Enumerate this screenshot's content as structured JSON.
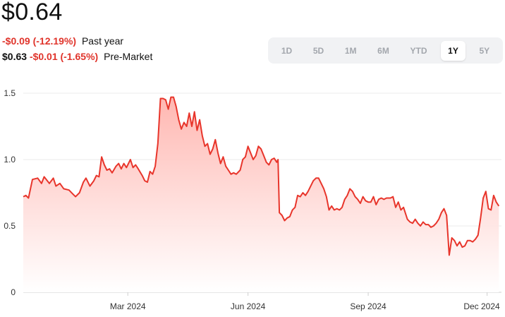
{
  "quote": {
    "price": "$0.64",
    "change_year": "-$0.09 (-12.19%)",
    "change_year_label": "Past year",
    "premarket_price": "$0.63",
    "premarket_change": "-$0.01 (-1.65%)",
    "premarket_label": "Pre-Market"
  },
  "ranges": [
    {
      "label": "1D",
      "active": false
    },
    {
      "label": "5D",
      "active": false
    },
    {
      "label": "1M",
      "active": false
    },
    {
      "label": "6M",
      "active": false
    },
    {
      "label": "YTD",
      "active": false
    },
    {
      "label": "1Y",
      "active": true
    },
    {
      "label": "5Y",
      "active": false
    }
  ],
  "colors": {
    "line": "#e8352b",
    "fill_top": "#ffb3ad",
    "grid": "#ebebeb",
    "axis": "#cfcfcf"
  },
  "chart_data": {
    "type": "area",
    "x_ticks": [
      "Mar 2024",
      "Jun 2024",
      "Sep 2024",
      "Dec 2024"
    ],
    "y_ticks": [
      "0",
      "0.5",
      "1.0",
      "1.5"
    ],
    "ylim": [
      0,
      1.5
    ],
    "xlim": [
      "2023-12-12",
      "2024-12-12"
    ],
    "grid": true,
    "series": [
      {
        "values": [
          [
            "2023-12-12",
            0.72
          ],
          [
            "2023-12-14",
            0.73
          ],
          [
            "2023-12-16",
            0.71
          ],
          [
            "2023-12-19",
            0.85
          ],
          [
            "2023-12-23",
            0.86
          ],
          [
            "2023-12-26",
            0.82
          ],
          [
            "2023-12-28",
            0.87
          ],
          [
            "2024-01-01",
            0.82
          ],
          [
            "2024-01-04",
            0.86
          ],
          [
            "2024-01-06",
            0.8
          ],
          [
            "2024-01-09",
            0.82
          ],
          [
            "2024-01-12",
            0.78
          ],
          [
            "2024-01-16",
            0.77
          ],
          [
            "2024-01-19",
            0.74
          ],
          [
            "2024-01-21",
            0.72
          ],
          [
            "2024-01-24",
            0.75
          ],
          [
            "2024-01-27",
            0.83
          ],
          [
            "2024-01-29",
            0.86
          ],
          [
            "2024-02-01",
            0.8
          ],
          [
            "2024-02-04",
            0.84
          ],
          [
            "2024-02-06",
            0.88
          ],
          [
            "2024-02-08",
            0.87
          ],
          [
            "2024-02-10",
            1.02
          ],
          [
            "2024-02-12",
            0.96
          ],
          [
            "2024-02-14",
            0.92
          ],
          [
            "2024-02-16",
            0.93
          ],
          [
            "2024-02-18",
            0.9
          ],
          [
            "2024-02-21",
            0.95
          ],
          [
            "2024-02-23",
            0.97
          ],
          [
            "2024-02-25",
            0.93
          ],
          [
            "2024-02-27",
            0.97
          ],
          [
            "2024-02-29",
            0.94
          ],
          [
            "2024-03-03",
            1.0
          ],
          [
            "2024-03-05",
            0.94
          ],
          [
            "2024-03-07",
            0.96
          ],
          [
            "2024-03-09",
            0.93
          ],
          [
            "2024-03-12",
            0.88
          ],
          [
            "2024-03-14",
            0.84
          ],
          [
            "2024-03-16",
            0.83
          ],
          [
            "2024-03-18",
            0.91
          ],
          [
            "2024-03-20",
            0.89
          ],
          [
            "2024-03-22",
            0.95
          ],
          [
            "2024-03-24",
            1.12
          ],
          [
            "2024-03-26",
            1.46
          ],
          [
            "2024-03-28",
            1.46
          ],
          [
            "2024-03-30",
            1.45
          ],
          [
            "2024-04-01",
            1.38
          ],
          [
            "2024-04-03",
            1.47
          ],
          [
            "2024-04-05",
            1.47
          ],
          [
            "2024-04-07",
            1.4
          ],
          [
            "2024-04-09",
            1.3
          ],
          [
            "2024-04-11",
            1.23
          ],
          [
            "2024-04-13",
            1.28
          ],
          [
            "2024-04-15",
            1.25
          ],
          [
            "2024-04-17",
            1.35
          ],
          [
            "2024-04-19",
            1.25
          ],
          [
            "2024-04-21",
            1.36
          ],
          [
            "2024-04-23",
            1.22
          ],
          [
            "2024-04-25",
            1.3
          ],
          [
            "2024-04-27",
            1.18
          ],
          [
            "2024-04-29",
            1.1
          ],
          [
            "2024-05-01",
            1.12
          ],
          [
            "2024-05-03",
            1.04
          ],
          [
            "2024-05-05",
            1.08
          ],
          [
            "2024-05-07",
            1.15
          ],
          [
            "2024-05-09",
            1.05
          ],
          [
            "2024-05-11",
            0.97
          ],
          [
            "2024-05-13",
            1.02
          ],
          [
            "2024-05-15",
            0.95
          ],
          [
            "2024-05-17",
            0.92
          ],
          [
            "2024-05-19",
            0.89
          ],
          [
            "2024-05-21",
            0.9
          ],
          [
            "2024-05-23",
            0.89
          ],
          [
            "2024-05-26",
            0.92
          ],
          [
            "2024-05-28",
            1.0
          ],
          [
            "2024-05-30",
            1.02
          ],
          [
            "2024-06-01",
            1.1
          ],
          [
            "2024-06-03",
            1.05
          ],
          [
            "2024-06-05",
            1.0
          ],
          [
            "2024-06-07",
            1.03
          ],
          [
            "2024-06-09",
            1.1
          ],
          [
            "2024-06-11",
            1.08
          ],
          [
            "2024-06-13",
            1.03
          ],
          [
            "2024-06-15",
            0.98
          ],
          [
            "2024-06-17",
            0.96
          ],
          [
            "2024-06-19",
            1.0
          ],
          [
            "2024-06-21",
            1.01
          ],
          [
            "2024-06-23",
            0.98
          ],
          [
            "2024-06-24",
            1.0
          ],
          [
            "2024-06-25",
            0.6
          ],
          [
            "2024-06-27",
            0.58
          ],
          [
            "2024-06-29",
            0.54
          ],
          [
            "2024-07-01",
            0.56
          ],
          [
            "2024-07-03",
            0.57
          ],
          [
            "2024-07-05",
            0.62
          ],
          [
            "2024-07-07",
            0.64
          ],
          [
            "2024-07-09",
            0.73
          ],
          [
            "2024-07-11",
            0.72
          ],
          [
            "2024-07-13",
            0.75
          ],
          [
            "2024-07-15",
            0.73
          ],
          [
            "2024-07-17",
            0.76
          ],
          [
            "2024-07-19",
            0.8
          ],
          [
            "2024-07-21",
            0.84
          ],
          [
            "2024-07-23",
            0.86
          ],
          [
            "2024-07-25",
            0.86
          ],
          [
            "2024-07-27",
            0.82
          ],
          [
            "2024-07-29",
            0.78
          ],
          [
            "2024-07-31",
            0.72
          ],
          [
            "2024-08-02",
            0.62
          ],
          [
            "2024-08-04",
            0.65
          ],
          [
            "2024-08-06",
            0.62
          ],
          [
            "2024-08-08",
            0.63
          ],
          [
            "2024-08-10",
            0.62
          ],
          [
            "2024-08-12",
            0.64
          ],
          [
            "2024-08-14",
            0.7
          ],
          [
            "2024-08-16",
            0.73
          ],
          [
            "2024-08-18",
            0.78
          ],
          [
            "2024-08-20",
            0.76
          ],
          [
            "2024-08-22",
            0.72
          ],
          [
            "2024-08-24",
            0.7
          ],
          [
            "2024-08-26",
            0.67
          ],
          [
            "2024-08-28",
            0.72
          ],
          [
            "2024-08-30",
            0.69
          ],
          [
            "2024-09-01",
            0.68
          ],
          [
            "2024-09-03",
            0.68
          ],
          [
            "2024-09-05",
            0.72
          ],
          [
            "2024-09-07",
            0.66
          ],
          [
            "2024-09-09",
            0.7
          ],
          [
            "2024-09-11",
            0.71
          ],
          [
            "2024-09-13",
            0.7
          ],
          [
            "2024-09-15",
            0.71
          ],
          [
            "2024-09-18",
            0.71
          ],
          [
            "2024-09-20",
            0.72
          ],
          [
            "2024-09-22",
            0.64
          ],
          [
            "2024-09-24",
            0.68
          ],
          [
            "2024-09-26",
            0.62
          ],
          [
            "2024-09-28",
            0.64
          ],
          [
            "2024-10-01",
            0.55
          ],
          [
            "2024-10-03",
            0.53
          ],
          [
            "2024-10-05",
            0.52
          ],
          [
            "2024-10-07",
            0.55
          ],
          [
            "2024-10-09",
            0.52
          ],
          [
            "2024-10-11",
            0.5
          ],
          [
            "2024-10-13",
            0.53
          ],
          [
            "2024-10-15",
            0.51
          ],
          [
            "2024-10-17",
            0.51
          ],
          [
            "2024-10-19",
            0.49
          ],
          [
            "2024-10-21",
            0.5
          ],
          [
            "2024-10-23",
            0.52
          ],
          [
            "2024-10-25",
            0.55
          ],
          [
            "2024-10-27",
            0.6
          ],
          [
            "2024-10-29",
            0.63
          ],
          [
            "2024-10-31",
            0.58
          ],
          [
            "2024-11-02",
            0.28
          ],
          [
            "2024-11-04",
            0.41
          ],
          [
            "2024-11-06",
            0.39
          ],
          [
            "2024-11-08",
            0.35
          ],
          [
            "2024-11-10",
            0.38
          ],
          [
            "2024-11-12",
            0.34
          ],
          [
            "2024-11-14",
            0.35
          ],
          [
            "2024-11-16",
            0.39
          ],
          [
            "2024-11-18",
            0.39
          ],
          [
            "2024-11-20",
            0.38
          ],
          [
            "2024-11-22",
            0.4
          ],
          [
            "2024-11-24",
            0.43
          ],
          [
            "2024-11-26",
            0.56
          ],
          [
            "2024-11-28",
            0.71
          ],
          [
            "2024-11-30",
            0.76
          ],
          [
            "2024-12-02",
            0.63
          ],
          [
            "2024-12-04",
            0.62
          ],
          [
            "2024-12-06",
            0.73
          ],
          [
            "2024-12-08",
            0.68
          ],
          [
            "2024-12-10",
            0.65
          ]
        ]
      }
    ]
  }
}
